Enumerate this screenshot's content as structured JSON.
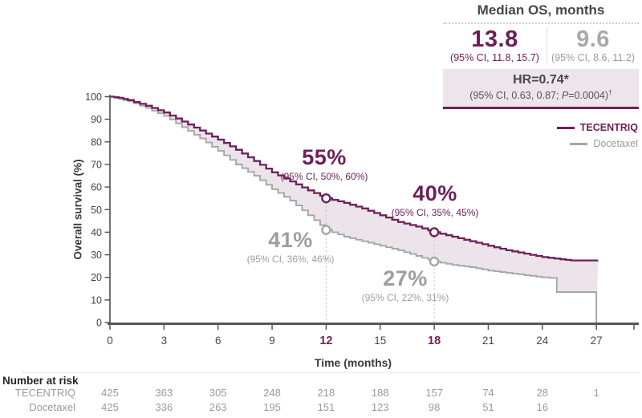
{
  "colors": {
    "brand_purple": "#6e2059",
    "gray_series": "#a6a6a6",
    "fill_band": "#ece3eb",
    "hr_box_bg": "#ede4ec",
    "axis": "#575757",
    "guide": "#c6c6c6"
  },
  "median_panel": {
    "title": "Median OS, months",
    "columns": [
      {
        "name": "TECENTRIQ",
        "value": "13.8",
        "ci": "(95% CI, 11.8, 15.7)"
      },
      {
        "name": "Docetaxel",
        "value": "9.6",
        "ci": "(95% CI, 8.6, 11.2)"
      }
    ],
    "hr_box": {
      "hr": "HR=0.74*",
      "ci_pre": "(95% CI, 0.63, 0.87; ",
      "p_label": "P",
      "ci_post": "=0.0004)",
      "dagger": "†"
    }
  },
  "legend": [
    {
      "label": "TECENTRIQ",
      "color": "#6e2059"
    },
    {
      "label": "Docetaxel",
      "color": "#a6a6a6"
    }
  ],
  "chart_data": {
    "type": "line",
    "subtype": "kaplan-meier-step",
    "title": "",
    "xlabel": "Time (months)",
    "ylabel": "Overall survival (%)",
    "xlim": [
      0,
      27
    ],
    "ylim": [
      0,
      100
    ],
    "xticks": [
      0,
      3,
      6,
      9,
      12,
      15,
      18,
      21,
      24,
      27
    ],
    "yticks": [
      0,
      10,
      20,
      30,
      40,
      50,
      60,
      70,
      80,
      90,
      100
    ],
    "highlighted_xticks": [
      12,
      18
    ],
    "grid": false,
    "legend_position": "right",
    "series": [
      {
        "name": "TECENTRIQ",
        "color": "#6e2059",
        "points": [
          [
            0,
            100
          ],
          [
            0.5,
            99.5
          ],
          [
            1,
            98.5
          ],
          [
            2,
            96
          ],
          [
            3,
            93
          ],
          [
            4,
            89
          ],
          [
            5,
            85
          ],
          [
            6,
            81
          ],
          [
            7,
            76.5
          ],
          [
            8,
            71.5
          ],
          [
            9,
            66.5
          ],
          [
            10,
            62.5
          ],
          [
            11,
            58.5
          ],
          [
            12,
            55
          ],
          [
            13,
            53
          ],
          [
            14,
            50.5
          ],
          [
            15,
            47.5
          ],
          [
            16,
            44.5
          ],
          [
            17,
            42.5
          ],
          [
            18,
            40
          ],
          [
            19,
            38
          ],
          [
            20,
            36
          ],
          [
            21,
            34
          ],
          [
            22,
            32
          ],
          [
            23,
            30.5
          ],
          [
            24,
            29
          ],
          [
            25,
            28
          ],
          [
            25.6,
            27.5
          ],
          [
            27.1,
            27.5
          ]
        ]
      },
      {
        "name": "Docetaxel",
        "color": "#a6a6a6",
        "points": [
          [
            0,
            100
          ],
          [
            0.5,
            99
          ],
          [
            1,
            98
          ],
          [
            2,
            95
          ],
          [
            3,
            91.5
          ],
          [
            4,
            86.5
          ],
          [
            5,
            81.5
          ],
          [
            6,
            76
          ],
          [
            7,
            70
          ],
          [
            8,
            65
          ],
          [
            9,
            59
          ],
          [
            10,
            54
          ],
          [
            11,
            47.5
          ],
          [
            12,
            41
          ],
          [
            13,
            38
          ],
          [
            14,
            36
          ],
          [
            15,
            34
          ],
          [
            16,
            32
          ],
          [
            17,
            29.5
          ],
          [
            18,
            27
          ],
          [
            19,
            25.5
          ],
          [
            20,
            24.5
          ],
          [
            21,
            23
          ],
          [
            22,
            22
          ],
          [
            23,
            21
          ],
          [
            24,
            20
          ],
          [
            24.8,
            19.5
          ],
          [
            24.8,
            13.5
          ],
          [
            27,
            13.5
          ],
          [
            27,
            0
          ]
        ]
      }
    ],
    "landmarks": [
      {
        "series": "TECENTRIQ",
        "t": 12,
        "value": 55,
        "label": "55%",
        "ci": "(95% CI, 50%, 60%)"
      },
      {
        "series": "TECENTRIQ",
        "t": 18,
        "value": 40,
        "label": "40%",
        "ci": "(95% CI, 35%, 45%)"
      },
      {
        "series": "Docetaxel",
        "t": 12,
        "value": 41,
        "label": "41%",
        "ci": "(95% CI, 36%, 46%)"
      },
      {
        "series": "Docetaxel",
        "t": 18,
        "value": 27,
        "label": "27%",
        "ci": "(95% CI, 22%, 31%)"
      }
    ]
  },
  "number_at_risk": {
    "title": "Number at risk",
    "time_points": [
      0,
      3,
      6,
      9,
      12,
      15,
      18,
      21,
      24,
      27
    ],
    "rows": [
      {
        "label": "TECENTRIQ",
        "values": [
          "425",
          "363",
          "305",
          "248",
          "218",
          "188",
          "157",
          "74",
          "28",
          "1"
        ]
      },
      {
        "label": "Docetaxel",
        "values": [
          "425",
          "336",
          "263",
          "195",
          "151",
          "123",
          "98",
          "51",
          "16"
        ]
      }
    ]
  }
}
